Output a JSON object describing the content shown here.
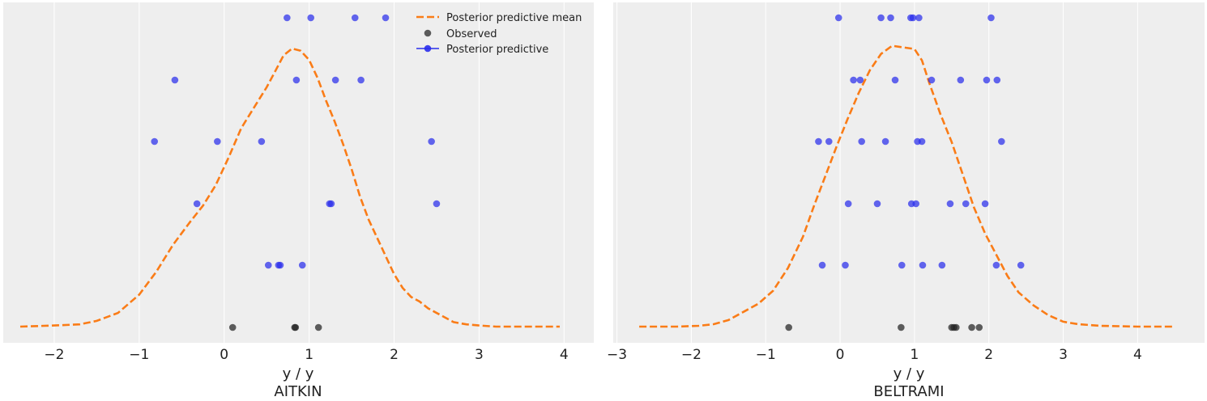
{
  "chart_data": [
    {
      "type": "scatter",
      "panel": "AITKIN",
      "xlabel": "y / y",
      "title": "AITKIN",
      "xlim": [
        -2.6,
        4.35
      ],
      "xticks": [
        -2,
        -1,
        0,
        1,
        2,
        3,
        4
      ],
      "xtick_labels": [
        "−2",
        "−1",
        "0",
        "1",
        "2",
        "3",
        "4"
      ],
      "grid": true,
      "legend_position": "top-right",
      "series": [
        {
          "name": "Posterior predictive mean",
          "kind": "dashed-line",
          "color": "#fa7c17",
          "x": [
            -2.4,
            -2.0,
            -1.7,
            -1.5,
            -1.25,
            -1.0,
            -0.8,
            -0.6,
            -0.4,
            -0.25,
            -0.1,
            0.05,
            0.2,
            0.35,
            0.5,
            0.6,
            0.7,
            0.8,
            0.9,
            1.0,
            1.1,
            1.2,
            1.3,
            1.4,
            1.5,
            1.6,
            1.7,
            1.8,
            1.9,
            2.0,
            2.1,
            2.2,
            2.3,
            2.4,
            2.55,
            2.7,
            2.85,
            3.0,
            3.2,
            3.35,
            3.5,
            3.7,
            3.95
          ],
          "y": [
            0.0,
            0.005,
            0.01,
            0.025,
            0.06,
            0.14,
            0.24,
            0.36,
            0.46,
            0.53,
            0.62,
            0.74,
            0.87,
            0.96,
            1.05,
            1.12,
            1.19,
            1.22,
            1.21,
            1.17,
            1.09,
            0.99,
            0.9,
            0.8,
            0.69,
            0.57,
            0.47,
            0.39,
            0.31,
            0.23,
            0.17,
            0.13,
            0.11,
            0.08,
            0.05,
            0.02,
            0.01,
            0.005,
            0.0,
            0.0,
            0.0,
            0.0,
            0.0
          ]
        },
        {
          "name": "Observed",
          "kind": "points",
          "color": "#222222",
          "x": [
            0.1,
            0.83,
            0.84,
            1.11
          ],
          "y": [
            0,
            0,
            0,
            0
          ]
        },
        {
          "name": "Posterior predictive",
          "kind": "points",
          "color": "#2a2eec",
          "x": [
            0.74,
            1.02,
            1.54,
            1.9,
            -0.58,
            0.85,
            1.31,
            1.61,
            -0.82,
            -0.08,
            0.44,
            2.44,
            -0.32,
            1.24,
            1.26,
            2.5,
            0.52,
            0.64,
            0.66,
            0.92
          ],
          "y": [
            5,
            5,
            5,
            5,
            4,
            4,
            4,
            4,
            3,
            3,
            3,
            3,
            2,
            2,
            2,
            2,
            1,
            1,
            1,
            1
          ]
        }
      ]
    },
    {
      "type": "scatter",
      "panel": "BELTRAMI",
      "xlabel": "y / y",
      "title": "BELTRAMI",
      "xlim": [
        -3.05,
        4.9
      ],
      "xticks": [
        -3,
        -2,
        -1,
        0,
        1,
        2,
        3,
        4
      ],
      "xtick_labels": [
        "−3",
        "−2",
        "−1",
        "0",
        "1",
        "2",
        "3",
        "4"
      ],
      "grid": true,
      "series": [
        {
          "name": "Posterior predictive mean",
          "kind": "dashed-line",
          "color": "#fa7c17",
          "x": [
            -2.7,
            -2.2,
            -1.9,
            -1.7,
            -1.5,
            -1.3,
            -1.1,
            -0.9,
            -0.7,
            -0.5,
            -0.35,
            -0.2,
            -0.05,
            0.1,
            0.25,
            0.4,
            0.55,
            0.7,
            0.85,
            1.0,
            1.1,
            1.2,
            1.35,
            1.5,
            1.65,
            1.8,
            1.95,
            2.1,
            2.25,
            2.4,
            2.6,
            2.8,
            3.0,
            3.2,
            3.5,
            4.0,
            4.5
          ],
          "y": [
            0.0,
            0.0,
            0.005,
            0.015,
            0.04,
            0.09,
            0.14,
            0.22,
            0.36,
            0.55,
            0.74,
            0.92,
            1.1,
            1.27,
            1.43,
            1.57,
            1.67,
            1.72,
            1.71,
            1.7,
            1.63,
            1.49,
            1.3,
            1.13,
            0.93,
            0.73,
            0.57,
            0.44,
            0.31,
            0.21,
            0.13,
            0.07,
            0.03,
            0.015,
            0.005,
            0.0,
            0.0
          ]
        },
        {
          "name": "Observed",
          "kind": "points",
          "color": "#222222",
          "x": [
            -0.69,
            0.82,
            1.5,
            1.53,
            1.56,
            1.77,
            1.87
          ],
          "y": [
            0,
            0,
            0,
            0,
            0,
            0,
            0
          ]
        },
        {
          "name": "Posterior predictive",
          "kind": "points",
          "color": "#2a2eec",
          "x": [
            -0.02,
            0.55,
            0.68,
            0.95,
            0.98,
            1.06,
            2.03,
            0.18,
            0.27,
            0.74,
            1.23,
            1.62,
            1.97,
            2.11,
            -0.29,
            -0.15,
            0.29,
            0.61,
            1.04,
            1.1,
            2.17,
            0.11,
            0.5,
            0.96,
            1.02,
            1.48,
            1.69,
            1.95,
            -0.24,
            0.07,
            0.83,
            1.11,
            1.37,
            2.1,
            2.43
          ],
          "y": [
            5,
            5,
            5,
            5,
            5,
            5,
            5,
            4,
            4,
            4,
            4,
            4,
            4,
            4,
            3,
            3,
            3,
            3,
            3,
            3,
            3,
            2,
            2,
            2,
            2,
            2,
            2,
            2,
            1,
            1,
            1,
            1,
            1,
            1,
            1
          ]
        }
      ]
    }
  ]
}
